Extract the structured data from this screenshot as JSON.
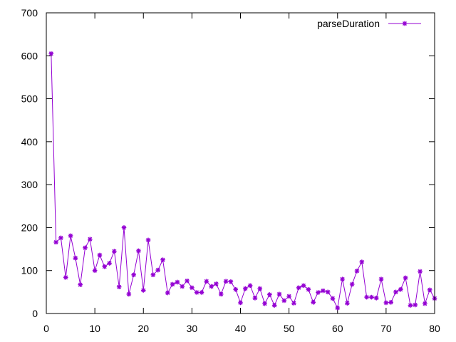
{
  "chart_data": {
    "type": "line",
    "title": "",
    "xlabel": "",
    "ylabel": "",
    "xlim": [
      0,
      80
    ],
    "ylim": [
      0,
      700
    ],
    "x_ticks": [
      0,
      10,
      20,
      30,
      40,
      50,
      60,
      70,
      80
    ],
    "y_ticks": [
      0,
      100,
      200,
      300,
      400,
      500,
      600,
      700
    ],
    "grid": false,
    "legend_position": "top-right",
    "series": [
      {
        "name": "parseDuration",
        "color": "#9400d3",
        "marker": "star",
        "x": [
          1,
          2,
          3,
          4,
          5,
          6,
          7,
          8,
          9,
          10,
          11,
          12,
          13,
          14,
          15,
          16,
          17,
          18,
          19,
          20,
          21,
          22,
          23,
          24,
          25,
          26,
          27,
          28,
          29,
          30,
          31,
          32,
          33,
          34,
          35,
          36,
          37,
          38,
          39,
          40,
          41,
          42,
          43,
          44,
          45,
          46,
          47,
          48,
          49,
          50,
          51,
          52,
          53,
          54,
          55,
          56,
          57,
          58,
          59,
          60,
          61,
          62,
          63,
          64,
          65,
          66,
          67,
          68,
          69,
          70,
          71,
          72,
          73,
          74,
          75,
          76,
          77,
          78,
          79,
          80
        ],
        "y": [
          605,
          166,
          176,
          84,
          181,
          129,
          67,
          153,
          173,
          100,
          136,
          109,
          117,
          145,
          62,
          200,
          45,
          90,
          146,
          54,
          171,
          90,
          101,
          125,
          48,
          68,
          73,
          63,
          76,
          60,
          49,
          49,
          75,
          63,
          69,
          45,
          75,
          74,
          56,
          25,
          58,
          65,
          36,
          58,
          23,
          44,
          19,
          45,
          30,
          40,
          24,
          60,
          65,
          56,
          26,
          49,
          53,
          50,
          35,
          13,
          80,
          24,
          68,
          99,
          120,
          38,
          38,
          36,
          80,
          25,
          26,
          50,
          56,
          83,
          19,
          20,
          98,
          23,
          55,
          35
        ]
      }
    ]
  }
}
